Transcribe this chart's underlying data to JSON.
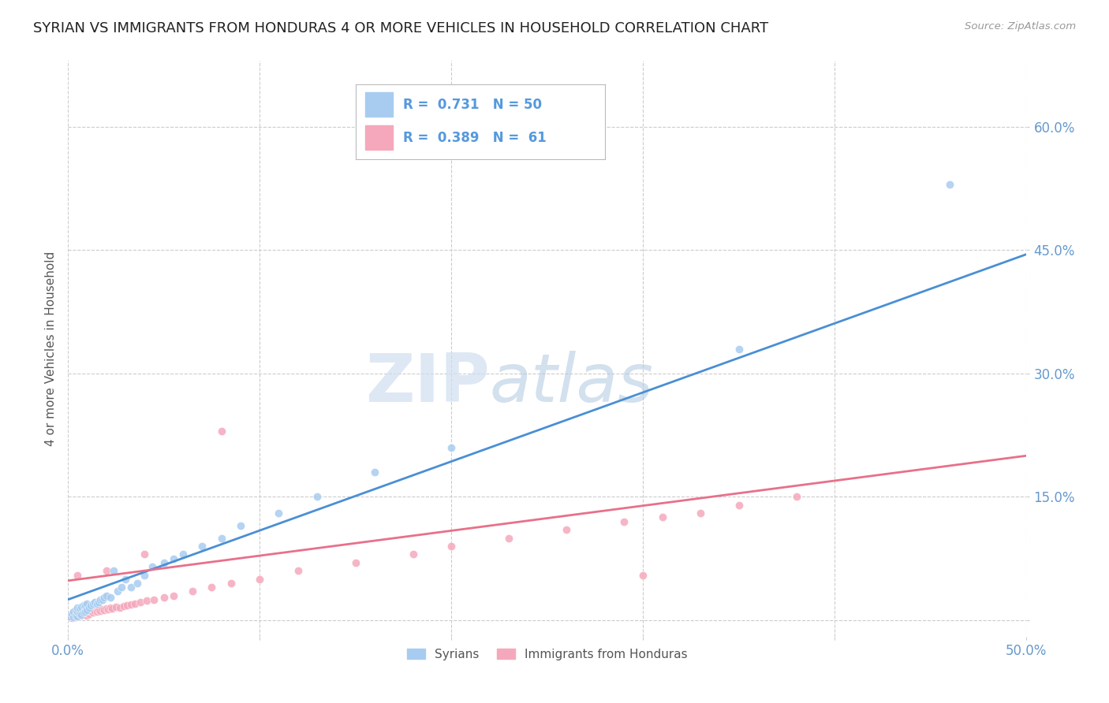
{
  "title": "SYRIAN VS IMMIGRANTS FROM HONDURAS 4 OR MORE VEHICLES IN HOUSEHOLD CORRELATION CHART",
  "source": "Source: ZipAtlas.com",
  "ylabel": "4 or more Vehicles in Household",
  "xlim": [
    0.0,
    0.5
  ],
  "ylim": [
    -0.02,
    0.68
  ],
  "xticks": [
    0.0,
    0.1,
    0.2,
    0.3,
    0.4,
    0.5
  ],
  "xticklabels": [
    "0.0%",
    "",
    "",
    "",
    "",
    "50.0%"
  ],
  "yticks": [
    0.0,
    0.15,
    0.3,
    0.45,
    0.6
  ],
  "yticklabels": [
    "",
    "15.0%",
    "30.0%",
    "45.0%",
    "60.0%"
  ],
  "r_syrian": 0.731,
  "n_syrian": 50,
  "r_honduras": 0.389,
  "n_honduras": 61,
  "color_syrian": "#A8CCF0",
  "color_honduras": "#F5A8BC",
  "color_syrian_line": "#4A8FD4",
  "color_honduras_line": "#E8708A",
  "color_text_blue": "#5599DD",
  "color_tick": "#6699CC",
  "legend_label_syrian": "Syrians",
  "legend_label_honduras": "Immigrants from Honduras",
  "watermark_zip": "ZIP",
  "watermark_atlas": "atlas",
  "background_color": "#FFFFFF",
  "grid_color": "#CCCCCC",
  "title_fontsize": 13,
  "axis_fontsize": 11,
  "tick_fontsize": 12,
  "syrian_x": [
    0.001,
    0.002,
    0.003,
    0.003,
    0.004,
    0.004,
    0.005,
    0.005,
    0.005,
    0.006,
    0.006,
    0.007,
    0.007,
    0.008,
    0.008,
    0.009,
    0.009,
    0.01,
    0.01,
    0.011,
    0.012,
    0.013,
    0.014,
    0.015,
    0.016,
    0.017,
    0.018,
    0.019,
    0.02,
    0.022,
    0.024,
    0.026,
    0.028,
    0.03,
    0.033,
    0.036,
    0.04,
    0.044,
    0.05,
    0.055,
    0.06,
    0.07,
    0.08,
    0.09,
    0.11,
    0.13,
    0.16,
    0.2,
    0.35,
    0.46
  ],
  "syrian_y": [
    0.005,
    0.008,
    0.004,
    0.01,
    0.006,
    0.012,
    0.005,
    0.01,
    0.015,
    0.008,
    0.014,
    0.007,
    0.016,
    0.009,
    0.018,
    0.01,
    0.018,
    0.012,
    0.02,
    0.015,
    0.018,
    0.02,
    0.022,
    0.02,
    0.022,
    0.025,
    0.025,
    0.028,
    0.03,
    0.028,
    0.06,
    0.035,
    0.04,
    0.05,
    0.04,
    0.045,
    0.055,
    0.065,
    0.07,
    0.075,
    0.08,
    0.09,
    0.1,
    0.115,
    0.13,
    0.15,
    0.18,
    0.21,
    0.33,
    0.53
  ],
  "honduras_x": [
    0.001,
    0.002,
    0.002,
    0.003,
    0.003,
    0.004,
    0.004,
    0.005,
    0.005,
    0.006,
    0.006,
    0.007,
    0.008,
    0.008,
    0.009,
    0.01,
    0.01,
    0.011,
    0.012,
    0.013,
    0.014,
    0.015,
    0.016,
    0.017,
    0.018,
    0.019,
    0.02,
    0.021,
    0.022,
    0.023,
    0.025,
    0.027,
    0.029,
    0.031,
    0.033,
    0.035,
    0.038,
    0.041,
    0.045,
    0.05,
    0.055,
    0.065,
    0.075,
    0.085,
    0.1,
    0.12,
    0.15,
    0.18,
    0.2,
    0.23,
    0.26,
    0.29,
    0.31,
    0.33,
    0.35,
    0.38,
    0.3,
    0.08,
    0.04,
    0.02,
    0.005
  ],
  "honduras_y": [
    0.004,
    0.003,
    0.007,
    0.005,
    0.009,
    0.004,
    0.008,
    0.005,
    0.01,
    0.006,
    0.012,
    0.006,
    0.007,
    0.013,
    0.008,
    0.006,
    0.014,
    0.008,
    0.01,
    0.009,
    0.011,
    0.01,
    0.012,
    0.011,
    0.013,
    0.012,
    0.014,
    0.013,
    0.015,
    0.014,
    0.016,
    0.015,
    0.017,
    0.018,
    0.019,
    0.02,
    0.022,
    0.024,
    0.025,
    0.028,
    0.03,
    0.035,
    0.04,
    0.045,
    0.05,
    0.06,
    0.07,
    0.08,
    0.09,
    0.1,
    0.11,
    0.12,
    0.125,
    0.13,
    0.14,
    0.15,
    0.055,
    0.23,
    0.08,
    0.06,
    0.055
  ],
  "syrian_line_x": [
    0.0,
    0.5
  ],
  "syrian_line_y": [
    0.025,
    0.445
  ],
  "honduras_line_x": [
    0.0,
    0.5
  ],
  "honduras_line_y": [
    0.048,
    0.2
  ]
}
